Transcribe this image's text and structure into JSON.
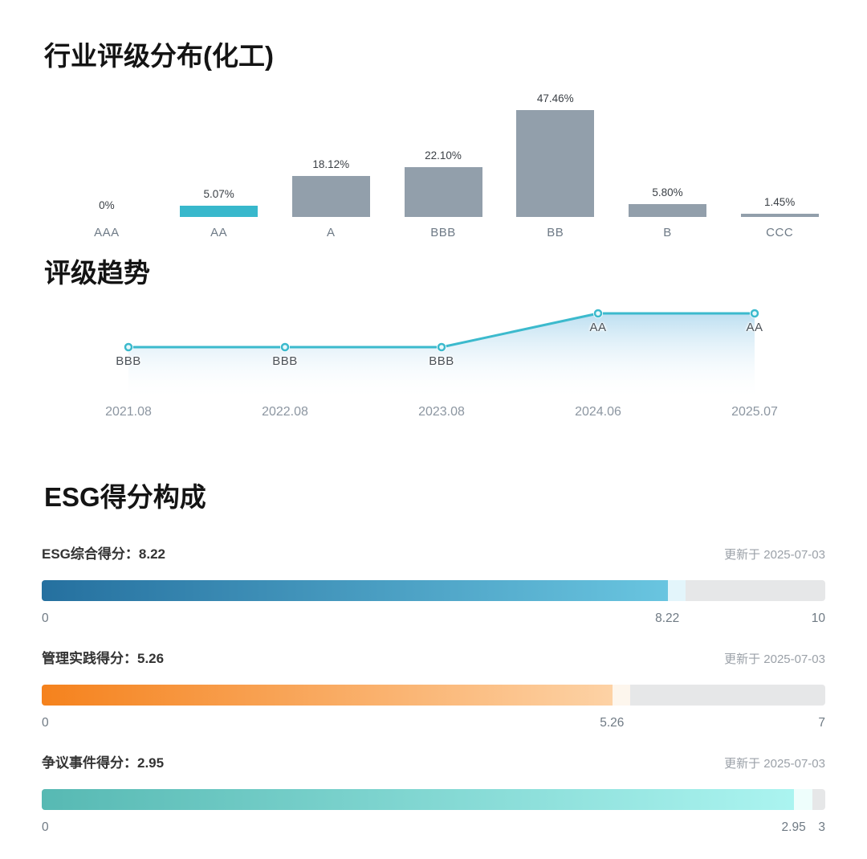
{
  "page": {
    "background": "#ffffff"
  },
  "chart_data": [
    {
      "type": "bar",
      "title": "行业评级分布(化工)",
      "categories": [
        "AAA",
        "AA",
        "A",
        "BBB",
        "BB",
        "B",
        "CCC"
      ],
      "values": [
        0,
        5.07,
        18.12,
        22.1,
        47.46,
        5.8,
        1.45
      ],
      "value_labels": [
        "0%",
        "5.07%",
        "18.12%",
        "22.10%",
        "47.46%",
        "5.80%",
        "1.45%"
      ],
      "unit": "percent",
      "ylim": [
        0,
        50
      ],
      "grid": false,
      "highlight_index": 1,
      "highlight_color": "#38b8cc",
      "bar_color": "#929fab",
      "value_label_color": "#3b4046",
      "category_label_color": "#6e7a86"
    },
    {
      "type": "line",
      "title": "评级趋势",
      "x": [
        "2021.08",
        "2022.08",
        "2023.08",
        "2024.06",
        "2025.07"
      ],
      "ratings": [
        "BBB",
        "BBB",
        "BBB",
        "AA",
        "AA"
      ],
      "rating_scale_low_to_high": [
        "CCC",
        "B",
        "BB",
        "BBB",
        "A",
        "AA",
        "AAA"
      ],
      "line_color": "#3cbacd",
      "marker_fill": "#e9f8fb",
      "area_fill_top": "#b9ddf0",
      "point_label_color": "#4b5157",
      "axis_label_color": "#8c96a1"
    },
    {
      "type": "bar",
      "subtype": "horizontal-progress",
      "title": "ESG得分构成",
      "rows": [
        {
          "name": "ESG综合得分",
          "display_label": "ESG综合得分：8.22",
          "score": 8.22,
          "max": 10,
          "min_label": "0",
          "score_label": "8.22",
          "max_label": "10",
          "updated": "更新于 2025-07-03",
          "gradient_start": "#25709f",
          "gradient_end": "#69c5e0",
          "cap_color": "#e3f5fb",
          "track_color": "#e6e7e8"
        },
        {
          "name": "管理实践得分",
          "display_label": "管理实践得分：5.26",
          "score": 5.26,
          "max": 7,
          "min_label": "0",
          "score_label": "5.26",
          "max_label": "7",
          "updated": "更新于 2025-07-03",
          "gradient_start": "#f5821d",
          "gradient_end": "#fdd2a5",
          "cap_color": "#fdf6ed",
          "track_color": "#e6e7e8"
        },
        {
          "name": "争议事件得分",
          "display_label": "争议事件得分：2.95",
          "score": 2.95,
          "max": 3,
          "min_label": "0",
          "score_label": "2.95",
          "max_label": "3",
          "updated": "更新于 2025-07-03",
          "gradient_start": "#57b9b3",
          "gradient_end": "#abf4f0",
          "cap_color": "#eefefc",
          "track_color": "#e6e7e8"
        }
      ]
    }
  ]
}
